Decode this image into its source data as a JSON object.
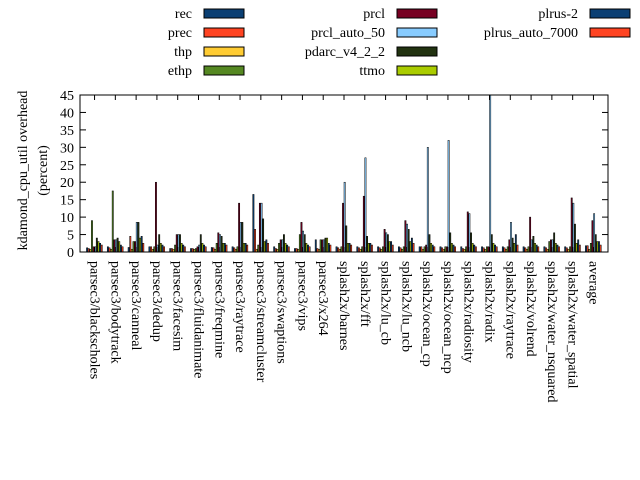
{
  "chart_data": {
    "type": "bar",
    "ylabel": "kdamond_cpu_util overhead\n(percent)",
    "ylim": [
      0,
      45
    ],
    "yticks": [
      0,
      5,
      10,
      15,
      20,
      25,
      30,
      35,
      40,
      45
    ],
    "legend_position": "top",
    "categories": [
      "parsec3/blackscholes",
      "parsec3/bodytrack",
      "parsec3/canneal",
      "parsec3/dedup",
      "parsec3/facesim",
      "parsec3/fluidanimate",
      "parsec3/freqmine",
      "parsec3/raytrace",
      "parsec3/streamcluster",
      "parsec3/swaptions",
      "parsec3/vips",
      "parsec3/x264",
      "splash2x/barnes",
      "splash2x/fft",
      "splash2x/lu_cb",
      "splash2x/lu_ncb",
      "splash2x/ocean_cp",
      "splash2x/ocean_ncp",
      "splash2x/radiosity",
      "splash2x/radix",
      "splash2x/raytrace",
      "splash2x/volrend",
      "splash2x/water_nsquared",
      "splash2x/water_spatial",
      "average"
    ],
    "series": [
      {
        "name": "rec",
        "color": "#0b3f73",
        "values": [
          1.2,
          1.5,
          1.3,
          1.5,
          1.0,
          1.0,
          1.3,
          1.5,
          16.5,
          1.5,
          1.0,
          3.5,
          1.5,
          1.5,
          1.5,
          1.5,
          1.5,
          1.5,
          1.5,
          1.5,
          1.5,
          1.5,
          1.5,
          1.5,
          1.8
        ]
      },
      {
        "name": "prec",
        "color": "#ff4422",
        "values": [
          1.0,
          1.2,
          4.5,
          1.5,
          1.0,
          1.0,
          1.2,
          1.2,
          6.5,
          1.0,
          1.0,
          1.0,
          1.2,
          1.2,
          1.2,
          1.2,
          1.5,
          1.2,
          1.0,
          1.2,
          1.2,
          1.2,
          1.2,
          1.2,
          1.8
        ]
      },
      {
        "name": "thp",
        "color": "#ffcc33",
        "values": [
          0.8,
          0.8,
          0.8,
          0.8,
          0.8,
          0.8,
          0.8,
          0.8,
          0.8,
          0.8,
          0.8,
          0.8,
          0.8,
          0.8,
          0.8,
          0.8,
          0.8,
          0.8,
          0.8,
          0.8,
          0.8,
          0.8,
          0.8,
          0.8,
          0.8
        ]
      },
      {
        "name": "ethp",
        "color": "#558822",
        "values": [
          9.0,
          17.5,
          3.0,
          1.5,
          2.0,
          1.0,
          2.5,
          1.5,
          2.0,
          2.5,
          5.0,
          3.5,
          1.5,
          1.5,
          1.5,
          1.5,
          1.5,
          1.5,
          1.5,
          1.5,
          1.5,
          1.5,
          3.0,
          1.5,
          2.5
        ]
      },
      {
        "name": "prcl",
        "color": "#770022",
        "values": [
          1.5,
          3.5,
          3.0,
          20.0,
          5.0,
          1.5,
          5.5,
          14.0,
          14.0,
          3.5,
          8.5,
          3.5,
          14.0,
          16.0,
          6.5,
          9.0,
          2.0,
          1.5,
          11.5,
          1.5,
          3.5,
          10.0,
          3.5,
          15.5,
          9.0
        ]
      },
      {
        "name": "prcl_auto_50",
        "color": "#88ccff",
        "values": [
          1.5,
          3.5,
          8.5,
          2.0,
          5.0,
          2.0,
          5.0,
          8.5,
          14.0,
          3.5,
          6.0,
          3.5,
          20.0,
          27.0,
          5.5,
          8.0,
          30.0,
          32.0,
          11.0,
          45.0,
          8.5,
          3.5,
          3.5,
          14.0,
          11.0
        ]
      },
      {
        "name": "pdarc_v4_2_2",
        "color": "#223311",
        "values": [
          4.0,
          4.0,
          8.5,
          5.0,
          5.0,
          5.0,
          4.5,
          8.5,
          9.5,
          5.0,
          5.0,
          4.0,
          7.5,
          4.5,
          5.0,
          6.5,
          5.0,
          5.5,
          5.5,
          5.0,
          4.0,
          4.5,
          5.5,
          8.0,
          5.0
        ]
      },
      {
        "name": "ttmo",
        "color": "#aacc00",
        "values": [
          3.0,
          3.0,
          4.0,
          2.5,
          2.5,
          2.5,
          2.5,
          2.5,
          3.0,
          2.5,
          2.5,
          4.0,
          2.5,
          2.5,
          3.0,
          3.0,
          2.5,
          2.5,
          2.5,
          2.5,
          2.5,
          2.5,
          2.5,
          2.5,
          3.0
        ]
      },
      {
        "name": "plrus-2",
        "color": "#0b3f73",
        "values": [
          2.5,
          2.0,
          4.5,
          2.0,
          2.0,
          2.0,
          2.5,
          2.5,
          3.5,
          2.0,
          2.0,
          2.5,
          2.5,
          2.5,
          3.0,
          4.0,
          2.0,
          2.0,
          2.0,
          2.0,
          5.0,
          2.0,
          2.0,
          3.5,
          3.0
        ]
      },
      {
        "name": "plrus_auto_7000",
        "color": "#ff4422",
        "values": [
          2.0,
          1.5,
          2.5,
          1.5,
          1.5,
          1.5,
          2.0,
          2.0,
          2.5,
          1.5,
          1.5,
          2.0,
          2.0,
          2.0,
          2.0,
          2.5,
          1.5,
          1.5,
          1.5,
          1.5,
          2.0,
          1.5,
          1.5,
          2.0,
          2.0
        ]
      }
    ]
  }
}
